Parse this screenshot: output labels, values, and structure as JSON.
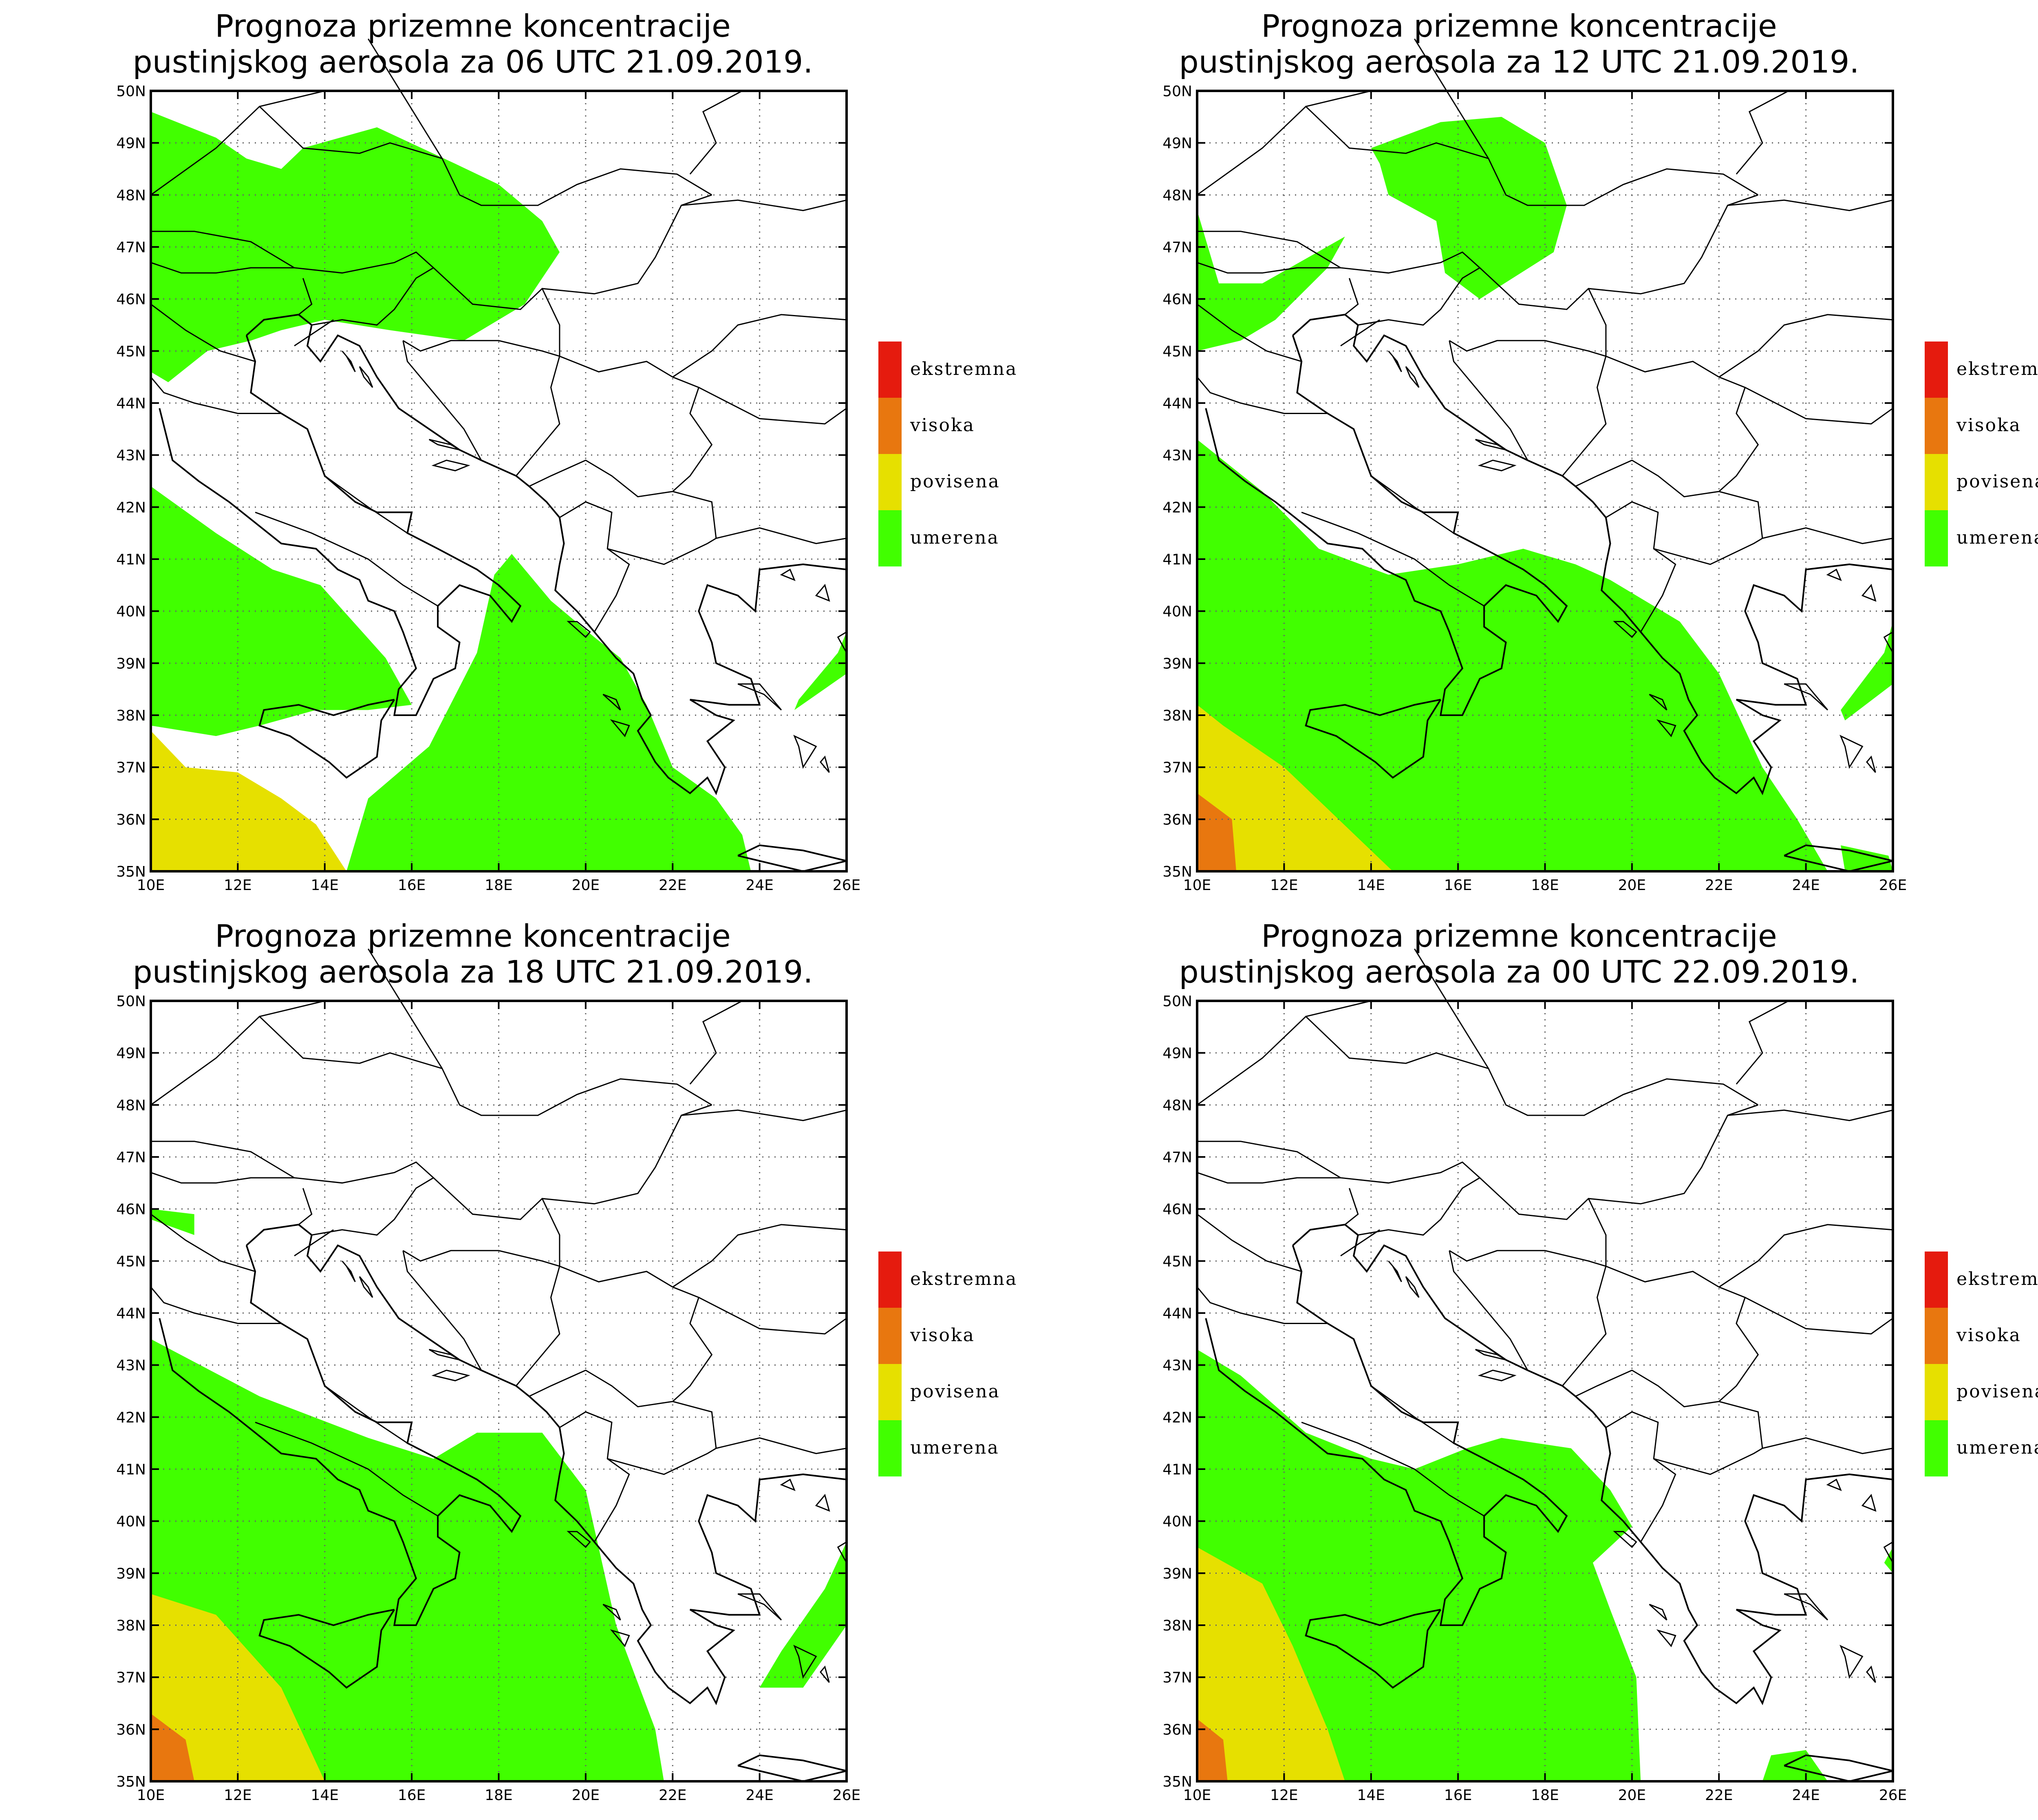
{
  "panels": [
    {
      "title_line1": "Prognoza prizemne koncentracije",
      "title_line2": "pustinjskog aerosola za 06 UTC 21.09.2019."
    },
    {
      "title_line1": "Prognoza prizemne koncentracije",
      "title_line2": "pustinjskog aerosola za 12 UTC 21.09.2019."
    },
    {
      "title_line1": "Prognoza prizemne koncentracije",
      "title_line2": "pustinjskog aerosola za 18 UTC 21.09.2019."
    },
    {
      "title_line1": "Prognoza prizemne koncentracije",
      "title_line2": "pustinjskog aerosola za 00 UTC 22.09.2019."
    }
  ],
  "axes": {
    "lat_labels": [
      "50N",
      "49N",
      "48N",
      "47N",
      "46N",
      "45N",
      "44N",
      "43N",
      "42N",
      "41N",
      "40N",
      "39N",
      "38N",
      "37N",
      "36N",
      "35N"
    ],
    "lon_labels": [
      "10E",
      "12E",
      "14E",
      "16E",
      "18E",
      "20E",
      "22E",
      "24E",
      "26E"
    ]
  },
  "legend": [
    {
      "label": "ekstremna",
      "color": "#e51b0e"
    },
    {
      "label": "visoka",
      "color": "#e8770f"
    },
    {
      "label": "povisena",
      "color": "#e6e000"
    },
    {
      "label": "umerena",
      "color": "#41ff00"
    }
  ]
}
